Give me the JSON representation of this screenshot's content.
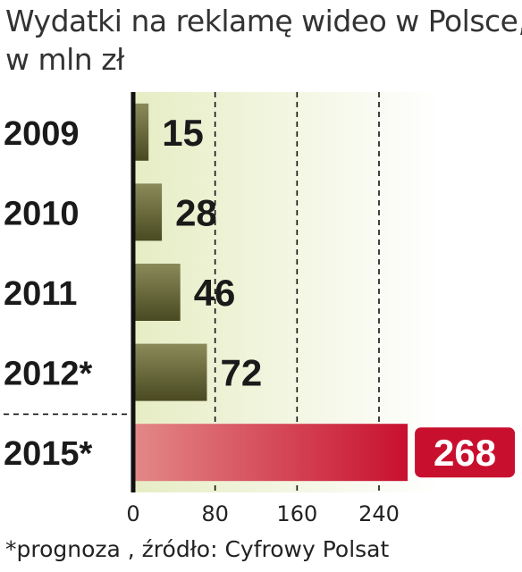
{
  "title": "Wydatki na reklamę wideo w Polsce, w mln zł",
  "title_lines": [
    "Wydatki na reklamę wideo w Polsce,",
    "w mln zł"
  ],
  "footnote": "*prognoza , źródło: Cyfrowy Polsat",
  "colors": {
    "bar_top": "#8a8a5a",
    "bar_bottom": "#4a4a22",
    "highlight_bar": "#c8102e",
    "highlight_badge": "#c8102e",
    "background_gradient": "#e6edc4",
    "axis": "#111111",
    "grid": "#111111"
  },
  "chart_data": {
    "type": "bar",
    "orientation": "horizontal",
    "title": "Wydatki na reklamę wideo w Polsce, w mln zł",
    "categories": [
      "2009",
      "2010",
      "2011",
      "2012*",
      "2015*"
    ],
    "values": [
      15,
      28,
      46,
      72,
      268
    ],
    "value_labels": [
      "15",
      "28",
      "46",
      "72",
      "268"
    ],
    "highlighted_category": "2015*",
    "xlim": [
      0,
      320
    ],
    "x_ticks": [
      0,
      80,
      160,
      240
    ],
    "x_tick_labels": [
      "0",
      "80",
      "160",
      "240"
    ],
    "grid": "vertical dashed lines at 80, 160 and 240",
    "xlabel": "",
    "ylabel": ""
  }
}
